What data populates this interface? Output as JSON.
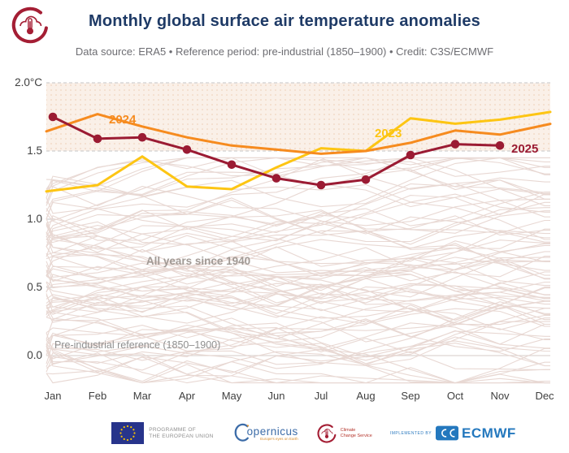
{
  "header": {
    "title": "Monthly global surface air temperature anomalies",
    "subtitle": "Data source: ERA5 • Reference period: pre-industrial (1850–1900) • Credit: C3S/ECMWF"
  },
  "chart_data": {
    "type": "line",
    "title": "Monthly global surface air temperature anomalies",
    "unit": "°C",
    "categories": [
      "Jan",
      "Feb",
      "Mar",
      "Apr",
      "May",
      "Jun",
      "Jul",
      "Aug",
      "Sep",
      "Oct",
      "Nov",
      "Dec"
    ],
    "y_axis": {
      "ticks": [
        "2.0°C",
        "1.5",
        "1.0",
        "0.5",
        "0.0"
      ],
      "values": [
        2.0,
        1.5,
        1.0,
        0.5,
        0.0
      ],
      "ylim": [
        -0.35,
        2.05
      ]
    },
    "series": [
      {
        "name": "2023",
        "color": "#fdc513",
        "values": [
          1.21,
          1.25,
          1.46,
          1.24,
          1.22,
          1.38,
          1.52,
          1.5,
          1.74,
          1.7,
          1.73,
          1.78
        ]
      },
      {
        "name": "2024",
        "color": "#f68b1f",
        "values": [
          1.66,
          1.77,
          1.68,
          1.6,
          1.54,
          1.51,
          1.48,
          1.5,
          1.56,
          1.65,
          1.62,
          1.69
        ]
      },
      {
        "name": "2025",
        "color": "#9b1b33",
        "markers": true,
        "values": [
          1.75,
          1.59,
          1.6,
          1.51,
          1.4,
          1.3,
          1.25,
          1.29,
          1.47,
          1.55,
          1.54
        ]
      }
    ],
    "band": {
      "from": 1.5,
      "to": 2.0,
      "fill": "#faf0e8",
      "dot_color": "#f2dbc8"
    },
    "grid": {
      "dashed_at": [
        2.0,
        1.5
      ],
      "solid_at": [
        0.0
      ],
      "tick_at": [
        1.0,
        0.5
      ]
    },
    "background": {
      "label": "All years since 1940",
      "count": 83,
      "color": "#e8d8d3",
      "value_range": [
        -0.2,
        1.45
      ],
      "seed": 1940
    },
    "reference_line": {
      "label": "Pre-industrial reference (1850–1900)",
      "value": 0.0
    },
    "legend_position": "inline-labels"
  },
  "footer": {
    "eu_line1": "PROGRAMME OF",
    "eu_line2": "THE EUROPEAN UNION",
    "copernicus_wordmark": "opernicus",
    "copernicus_tagline": "Europe's eyes on Earth",
    "c3s_line1": "Climate",
    "c3s_line2": "Change Service",
    "implemented_by": "IMPLEMENTED BY",
    "ecmwf_wordmark": "ECMWF"
  }
}
